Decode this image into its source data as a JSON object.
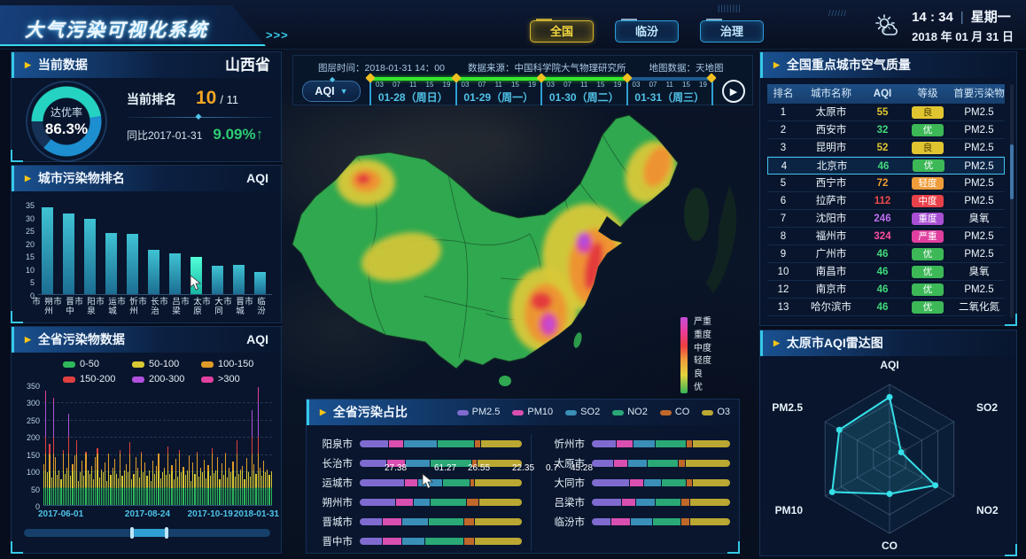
{
  "app": {
    "title": "大气污染可视化系统",
    "arrows": ">>>",
    "deco_ticks": "▮▮▮▮▮▮▮▮"
  },
  "header": {
    "tabs": [
      {
        "label": "全国",
        "active": true
      },
      {
        "label": "临汾",
        "active": false
      },
      {
        "label": "治理",
        "active": false
      }
    ],
    "time": "14 : 34",
    "separator": "|",
    "weekday": "星期一",
    "date": "2018 年 01 月 31 日"
  },
  "current": {
    "title": "当前数据",
    "region": "山西省",
    "gauge_label": "达优率",
    "gauge_value": "86.3%",
    "gauge_percent": 86.3,
    "rank_label": "当前排名",
    "rank_value": "10",
    "rank_total": "/ 11",
    "yoy_label": "同比2017-01-31",
    "yoy_value": "9.09%↑"
  },
  "city_rank": {
    "title": "城市污染物排名",
    "unit": "AQI",
    "ymax": 35,
    "yticks": [
      35,
      30,
      25,
      20,
      15,
      10,
      5,
      0
    ],
    "categories": [
      "朔州市",
      "晋中市",
      "阳泉市",
      "运城市",
      "忻州市",
      "长治市",
      "吕梁市",
      "太原市",
      "大同市",
      "晋城市",
      "临汾市"
    ],
    "values": [
      34,
      31.5,
      29.5,
      24,
      23.5,
      17.5,
      16,
      14.5,
      11,
      11.5,
      8.5
    ],
    "highlight_index": 7,
    "chart_type": "bar"
  },
  "province_series": {
    "title": "全省污染物数据",
    "unit": "AQI",
    "chart_type": "bar",
    "legend": [
      {
        "label": "0-50",
        "color": "#2db85a"
      },
      {
        "label": "50-100",
        "color": "#d8c832"
      },
      {
        "label": "100-150",
        "color": "#e09c28"
      },
      {
        "label": "150-200",
        "color": "#e04040"
      },
      {
        "label": "200-300",
        "color": "#b050e0"
      },
      {
        "label": ">300",
        "color": "#e040a0"
      }
    ],
    "bands": [
      {
        "upto": 50,
        "color": "#2db85a"
      },
      {
        "upto": 100,
        "color": "#d8c832"
      },
      {
        "upto": 150,
        "color": "#e09c28"
      },
      {
        "upto": 200,
        "color": "#e04040"
      },
      {
        "upto": 300,
        "color": "#b050e0"
      },
      {
        "upto": 400,
        "color": "#e040a0"
      }
    ],
    "ymax": 350,
    "yticks": [
      350,
      300,
      250,
      200,
      150,
      100,
      50,
      0
    ],
    "xlabels": [
      "2017-06-01",
      "2017-08-24",
      "2017-10-19",
      "2018-01-31"
    ],
    "xlabel_pos": [
      0,
      36,
      62,
      100
    ],
    "values": [
      120,
      335,
      95,
      180,
      80,
      315,
      140,
      88,
      100,
      75,
      160,
      90,
      110,
      267,
      85,
      120,
      145,
      190,
      70,
      95,
      130,
      85,
      155,
      100,
      90,
      115,
      75,
      140,
      165,
      80,
      105,
      95,
      125,
      70,
      150,
      88,
      110,
      135,
      92,
      78,
      160,
      85,
      100,
      120,
      95,
      185,
      75,
      90,
      140,
      110,
      80,
      155,
      95,
      125,
      85,
      100,
      70,
      130,
      90,
      115,
      150,
      78,
      95,
      108,
      88,
      170,
      92,
      118,
      76,
      135,
      84,
      160,
      95,
      112,
      88,
      102,
      145,
      70,
      125,
      90,
      155,
      82,
      108,
      96,
      132,
      78,
      118,
      86,
      165,
      94,
      100,
      140,
      75,
      122,
      88,
      152,
      80,
      110,
      95,
      128,
      84,
      190,
      92,
      105,
      115,
      74,
      138,
      96,
      82,
      278,
      120,
      90,
      345,
      110,
      85,
      130,
      95,
      105,
      88,
      98
    ],
    "slider": {
      "start_pct": 44,
      "end_pct": 58
    }
  },
  "map": {
    "layer_time": "图层时间：2018-01-31 14：00",
    "source": "数据来源：中国科学院大气物理研究所",
    "basemap": "地图数据：天地图",
    "metric": "AQI",
    "days": [
      {
        "date": "01-28（周日）",
        "ticks": [
          "03",
          "07",
          "11",
          "15",
          "19"
        ],
        "progress": true
      },
      {
        "date": "01-29（周一）",
        "ticks": [
          "03",
          "07",
          "11",
          "15",
          "19"
        ],
        "progress": true
      },
      {
        "date": "01-30（周二）",
        "ticks": [
          "03",
          "07",
          "11",
          "15",
          "19"
        ],
        "progress": true
      },
      {
        "date": "01-31（周三）",
        "ticks": [
          "03",
          "07",
          "11",
          "15",
          "19"
        ],
        "progress": false
      }
    ],
    "play_icon": "▶",
    "legend": [
      {
        "label": "严重",
        "color": "#c44fd8"
      },
      {
        "label": "重度",
        "color": "#e93c9e"
      },
      {
        "label": "中度",
        "color": "#ee3f3f"
      },
      {
        "label": "轻度",
        "color": "#f09c3c"
      },
      {
        "label": "良",
        "color": "#e3d43c"
      },
      {
        "label": "优",
        "color": "#35b357"
      }
    ]
  },
  "air_table": {
    "title": "全国重点城市空气质量",
    "columns": [
      "排名",
      "城市名称",
      "AQI",
      "等级",
      "首要污染物"
    ],
    "rows": [
      {
        "rank": "1",
        "city": "太原市",
        "aqi": "55",
        "aqi_color": "#e0c530",
        "grade": "良",
        "grade_bg": "#e0c530",
        "grade_fg": "#4a3c00",
        "pollutant": "PM2.5"
      },
      {
        "rank": "2",
        "city": "西安市",
        "aqi": "32",
        "aqi_color": "#41d97a",
        "grade": "优",
        "grade_bg": "#3cb857",
        "grade_fg": "#fff",
        "pollutant": "PM2.5"
      },
      {
        "rank": "3",
        "city": "昆明市",
        "aqi": "52",
        "aqi_color": "#e0c530",
        "grade": "良",
        "grade_bg": "#e0c530",
        "grade_fg": "#4a3c00",
        "pollutant": "PM2.5"
      },
      {
        "rank": "4",
        "city": "北京市",
        "aqi": "46",
        "aqi_color": "#41d97a",
        "grade": "优",
        "grade_bg": "#3cb857",
        "grade_fg": "#fff",
        "pollutant": "PM2.5",
        "highlight": true
      },
      {
        "rank": "5",
        "city": "西宁市",
        "aqi": "72",
        "aqi_color": "#f0a030",
        "grade": "轻度",
        "grade_bg": "#ef9c3a",
        "grade_fg": "#fff",
        "pollutant": "PM2.5"
      },
      {
        "rank": "6",
        "city": "拉萨市",
        "aqi": "112",
        "aqi_color": "#ef4a4a",
        "grade": "中度",
        "grade_bg": "#e8414a",
        "grade_fg": "#fff",
        "pollutant": "PM2.5"
      },
      {
        "rank": "7",
        "city": "沈阳市",
        "aqi": "246",
        "aqi_color": "#c06ef0",
        "grade": "重度",
        "grade_bg": "#a94fd3",
        "grade_fg": "#fff",
        "pollutant": "臭氧"
      },
      {
        "rank": "8",
        "city": "福州市",
        "aqi": "324",
        "aqi_color": "#ff4fa0",
        "grade": "严重",
        "grade_bg": "#e03fa0",
        "grade_fg": "#fff",
        "pollutant": "PM2.5"
      },
      {
        "rank": "9",
        "city": "广州市",
        "aqi": "46",
        "aqi_color": "#41d97a",
        "grade": "优",
        "grade_bg": "#3cb857",
        "grade_fg": "#fff",
        "pollutant": "PM2.5"
      },
      {
        "rank": "10",
        "city": "南昌市",
        "aqi": "46",
        "aqi_color": "#41d97a",
        "grade": "优",
        "grade_bg": "#3cb857",
        "grade_fg": "#fff",
        "pollutant": "臭氧"
      },
      {
        "rank": "12",
        "city": "南京市",
        "aqi": "46",
        "aqi_color": "#41d97a",
        "grade": "优",
        "grade_bg": "#3cb857",
        "grade_fg": "#fff",
        "pollutant": "PM2.5"
      },
      {
        "rank": "13",
        "city": "哈尔滨市",
        "aqi": "46",
        "aqi_color": "#41d97a",
        "grade": "优",
        "grade_bg": "#3cb857",
        "grade_fg": "#fff",
        "pollutant": "二氧化氮"
      }
    ]
  },
  "radar": {
    "title": "太原市AQI雷达图",
    "chart_type": "radar",
    "axes": [
      "AQI",
      "SO2",
      "NO2",
      "CO",
      "PM10",
      "PM2.5"
    ],
    "values": [
      0.83,
      0.18,
      0.71,
      0.47,
      0.89,
      0.78
    ],
    "levels": 4,
    "stroke": "#35e0e8"
  },
  "pollution_share": {
    "title": "全省污染占比",
    "chart_type": "stacked-bar",
    "legend": [
      {
        "label": "PM2.5",
        "color": "#7f6bd0"
      },
      {
        "label": "PM10",
        "color": "#d94fb0"
      },
      {
        "label": "SO2",
        "color": "#3a8fb8"
      },
      {
        "label": "NO2",
        "color": "#2aa876"
      },
      {
        "label": "CO",
        "color": "#c0682a"
      },
      {
        "label": "O3",
        "color": "#bba832"
      }
    ],
    "left_column": [
      {
        "city": "阳泉市",
        "segments": [
          18,
          9,
          21,
          23,
          3,
          26
        ]
      },
      {
        "city": "长治市",
        "segments": [
          17,
          11,
          15,
          26,
          3,
          28
        ]
      },
      {
        "city": "运城市",
        "segments": [
          28,
          8,
          15,
          17,
          2,
          30
        ]
      },
      {
        "city": "朔州市",
        "segments": [
          22,
          10,
          10,
          22,
          7,
          26
        ]
      },
      {
        "city": "晋城市",
        "segments": [
          14,
          12,
          16,
          22,
          6,
          30
        ]
      },
      {
        "city": "晋中市",
        "segments": [
          14,
          12,
          14,
          24,
          6,
          30
        ]
      }
    ],
    "right_column": [
      {
        "city": "忻州市",
        "segments": [
          18,
          12,
          16,
          22,
          4,
          28
        ]
      },
      {
        "city": "太原市",
        "segments": [
          16,
          10,
          14,
          22,
          5,
          33
        ]
      },
      {
        "city": "大同市",
        "segments": [
          28,
          10,
          12,
          18,
          4,
          28
        ]
      },
      {
        "city": "吕梁市",
        "segments": [
          22,
          10,
          14,
          18,
          6,
          30
        ]
      },
      {
        "city": "临汾市",
        "segments": [
          14,
          14,
          16,
          20,
          6,
          30
        ]
      }
    ],
    "tooltip": {
      "city_index": 2,
      "values": [
        "27.38",
        "61.27",
        "26.55",
        "22.35",
        "0.7",
        "45.28"
      ],
      "offsets": [
        28,
        84,
        122,
        172,
        210,
        238
      ]
    }
  }
}
